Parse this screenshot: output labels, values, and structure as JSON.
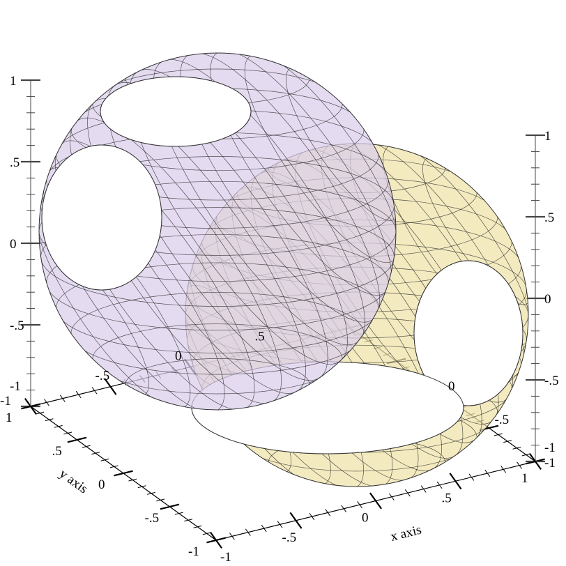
{
  "chart_data": {
    "type": "surface3d",
    "title": "",
    "xlabel": "x axis",
    "ylabel": "y axis",
    "zlabel": "",
    "xlim": [
      -1,
      1
    ],
    "ylim": [
      -1,
      1
    ],
    "zlim": [
      -1,
      1
    ],
    "x_ticks": [
      "-1",
      "-.5",
      "0",
      ".5",
      "1"
    ],
    "y_ticks": [
      "-1",
      "-.5",
      "0",
      ".5",
      "1"
    ],
    "z_ticks": [
      "-1",
      "-.5",
      "0",
      ".5",
      "1"
    ],
    "grid": false,
    "series": [
      {
        "shape": "sphere with three open holes (upper-left, translucent)",
        "color": "#d9cdea"
      },
      {
        "shape": "sphere with three open holes (lower-right, translucent)",
        "color": "#efe2a8"
      }
    ]
  }
}
